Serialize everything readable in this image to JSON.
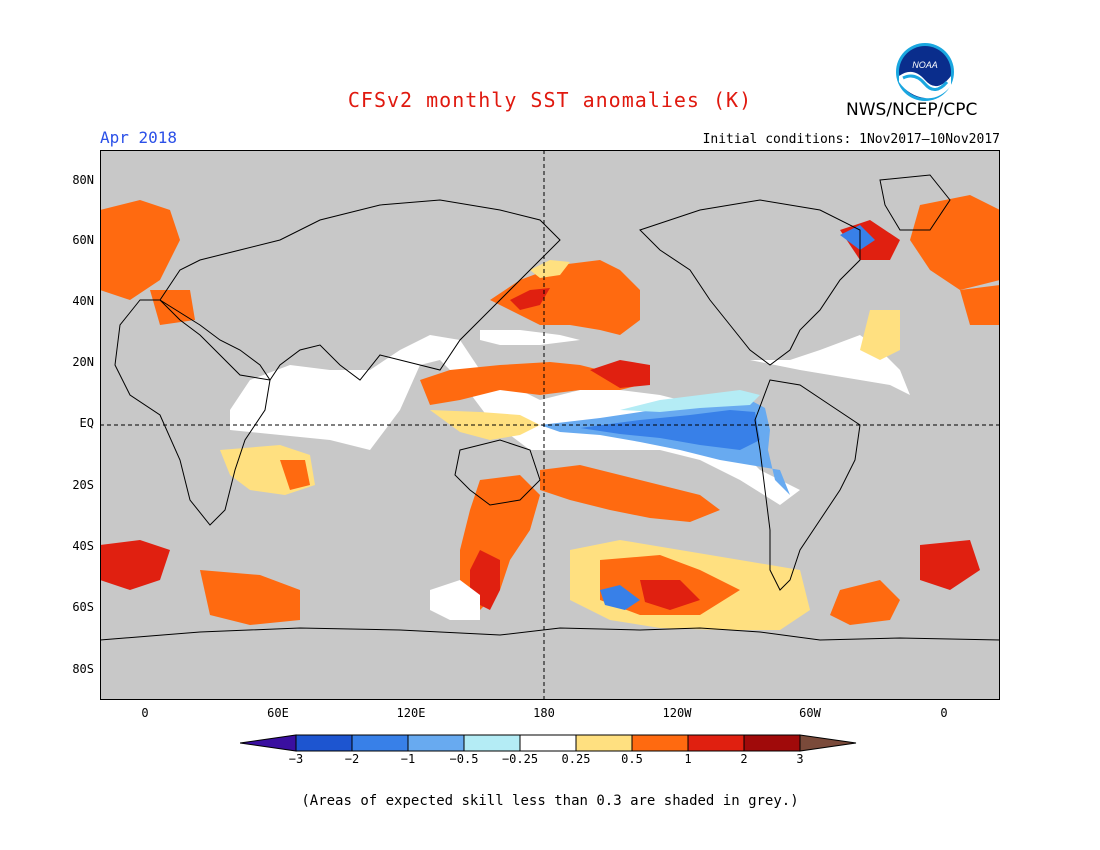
{
  "title": "CFSv2 monthly SST anomalies (K)",
  "period": "Apr 2018",
  "initial_conditions": "Initial conditions: 1Nov2017–10Nov2017",
  "agency": "NWS/NCEP/CPC",
  "logo_text": "NOAA",
  "note": "(Areas of expected skill less than 0.3 are shaded in grey.)",
  "map": {
    "lat_labels": [
      "80N",
      "60N",
      "40N",
      "20N",
      "EQ",
      "20S",
      "40S",
      "60S",
      "80S"
    ],
    "lon_labels": [
      "0",
      "60E",
      "120E",
      "180",
      "120W",
      "60W",
      "0"
    ],
    "colors": {
      "land_mask": "#c8c8c8",
      "coast": "#000000",
      "frame": "#000000"
    }
  },
  "legend": {
    "labels": [
      "−3",
      "−2",
      "−1",
      "−0.5",
      "−0.25",
      "0.25",
      "0.5",
      "1",
      "2",
      "3"
    ],
    "colors": [
      "#3a0fa0",
      "#1d55d0",
      "#3880e8",
      "#68aaf0",
      "#b4ecf5",
      "#ffffff",
      "#ffe080",
      "#ff6a10",
      "#e02010",
      "#a00a0a",
      "#7a4a3a"
    ]
  },
  "chart_data": {
    "type": "heatmap",
    "title": "CFSv2 monthly SST anomalies (K)",
    "field": "SST anomaly",
    "units": "K",
    "valid": "Apr 2018",
    "initial_conditions": "1Nov2017–10Nov2017",
    "lat_range": [
      -90,
      90
    ],
    "lon_range": [
      -20,
      385
    ],
    "contour_levels": [
      -3,
      -2,
      -1,
      -0.5,
      -0.25,
      0.25,
      0.5,
      1,
      2,
      3
    ]
  }
}
